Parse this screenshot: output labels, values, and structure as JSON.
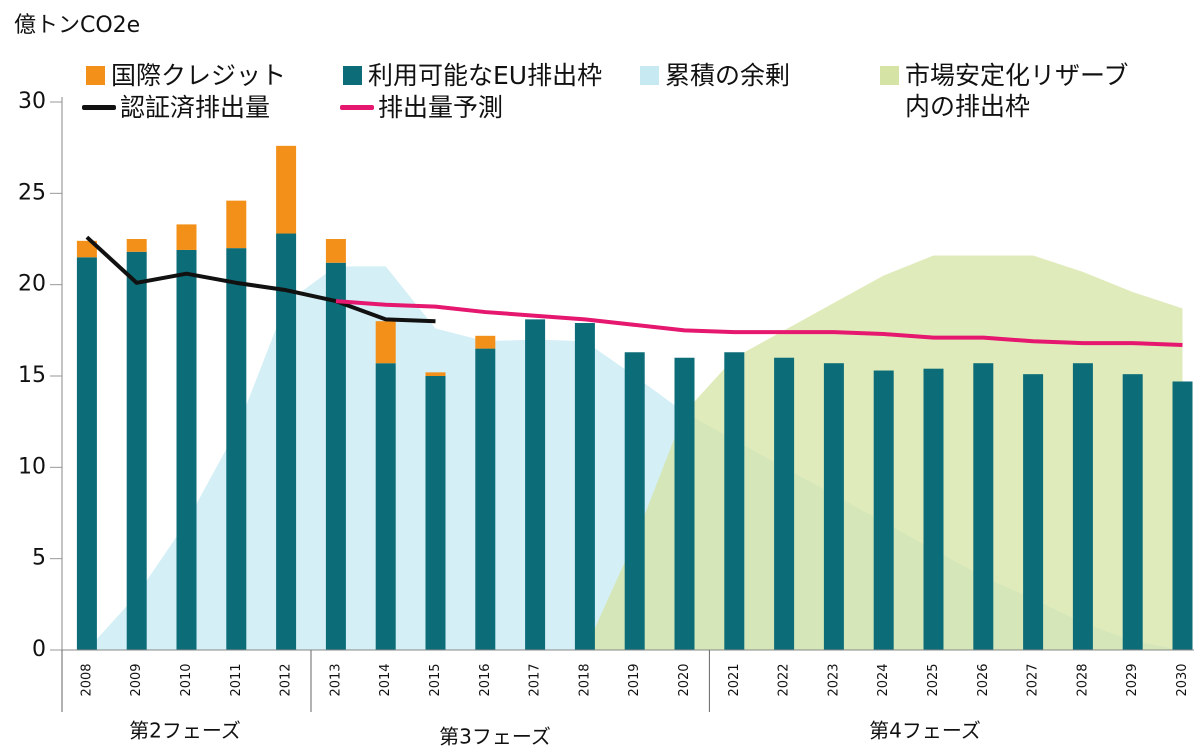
{
  "chart_data": {
    "type": "bar",
    "y_axis_label": "億トンCO2e",
    "categories": [
      "2008",
      "2009",
      "2010",
      "2011",
      "2012",
      "2013",
      "2014",
      "2015",
      "2016",
      "2017",
      "2018",
      "2019",
      "2020",
      "2021",
      "2022",
      "2023",
      "2024",
      "2025",
      "2026",
      "2027",
      "2028",
      "2029",
      "2030"
    ],
    "phases": [
      "第2フェーズ",
      "第3フェーズ",
      "第4フェーズ"
    ],
    "ylim": [
      0,
      30
    ],
    "yticks": [
      0,
      5,
      10,
      15,
      20,
      25,
      30
    ],
    "series": [
      {
        "name": "累積の余剰",
        "type": "area",
        "color": "#c6e9f2",
        "values": [
          0,
          3,
          7,
          12,
          19,
          21,
          21,
          17.6,
          16.9,
          17,
          16.9,
          15,
          13,
          11.5,
          10,
          8.5,
          7,
          5.5,
          4,
          2.8,
          1.5,
          0.5,
          0
        ]
      },
      {
        "name": "市場安定化リザーブ内の排出枠",
        "type": "area",
        "color": "#d5e4a4",
        "values": [
          null,
          null,
          null,
          null,
          null,
          null,
          null,
          null,
          null,
          null,
          0,
          6,
          13,
          16,
          17.5,
          19,
          20.5,
          21.6,
          21.6,
          21.6,
          20.7,
          19.6,
          18.7
        ]
      },
      {
        "name": "利用可能なEU排出枠",
        "type": "bar",
        "color": "#0c6d79",
        "values": [
          21.5,
          21.8,
          21.9,
          22.0,
          22.8,
          21.2,
          15.7,
          15.0,
          16.5,
          18.1,
          17.9,
          16.3,
          16.0,
          16.3,
          16.0,
          15.7,
          15.3,
          15.4,
          15.7,
          15.1,
          15.7,
          15.1,
          14.7
        ]
      },
      {
        "name": "国際クレジット",
        "type": "bar",
        "color": "#f39019",
        "values": [
          0.9,
          0.7,
          1.4,
          2.6,
          4.8,
          1.3,
          2.3,
          0.2,
          0.7,
          null,
          null,
          null,
          null,
          null,
          null,
          null,
          null,
          null,
          null,
          null,
          null,
          null,
          null
        ]
      },
      {
        "name": "認証済排出量",
        "type": "line",
        "color": "#111111",
        "values": [
          22.6,
          20.1,
          20.6,
          20.1,
          19.7,
          19.1,
          18.1,
          18.0,
          null,
          null,
          null,
          null,
          null,
          null,
          null,
          null,
          null,
          null,
          null,
          null,
          null,
          null,
          null
        ]
      },
      {
        "name": "排出量予測",
        "type": "line",
        "color": "#e5176e",
        "values": [
          null,
          null,
          null,
          null,
          null,
          19.1,
          18.9,
          18.8,
          18.5,
          18.3,
          18.1,
          17.8,
          17.5,
          17.4,
          17.4,
          17.4,
          17.3,
          17.1,
          17.1,
          16.9,
          16.8,
          16.8,
          16.7
        ]
      }
    ]
  }
}
